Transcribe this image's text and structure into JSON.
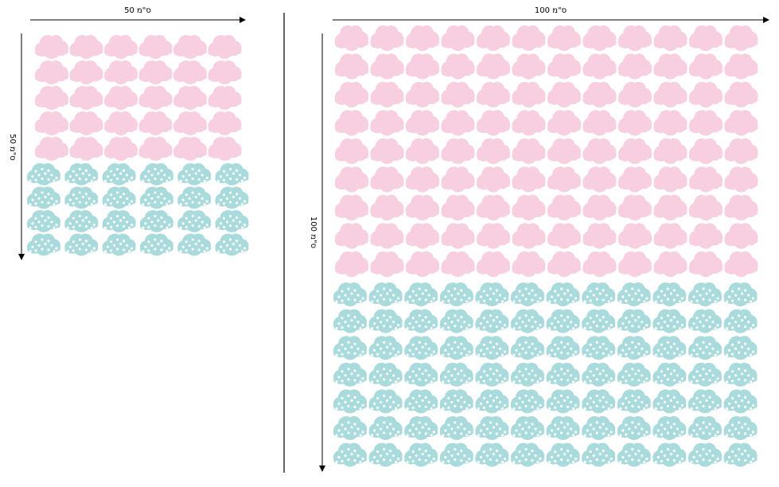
{
  "left_sheet": {
    "width_label": "50 ס\"מ",
    "height_label": "50 ס\"מ",
    "pink_grid": {
      "cols": 6,
      "rows": 5
    },
    "blue_grid": {
      "cols": 6,
      "rows": 4
    }
  },
  "right_sheet": {
    "width_label": "100 ס\"מ",
    "height_label": "100 ס\"מ",
    "pink_grid": {
      "cols": 12,
      "rows": 9
    },
    "blue_grid": {
      "cols": 12,
      "rows": 7
    }
  },
  "colors": {
    "pink_cloud": "#f7cfe0",
    "blue_cloud": "#a9dadc",
    "dots": "#ffffff",
    "lines": "#000000"
  },
  "icons": {
    "pink": "pink-cloud-sticker-icon",
    "blue": "polka-dot-cloud-sticker-icon"
  }
}
